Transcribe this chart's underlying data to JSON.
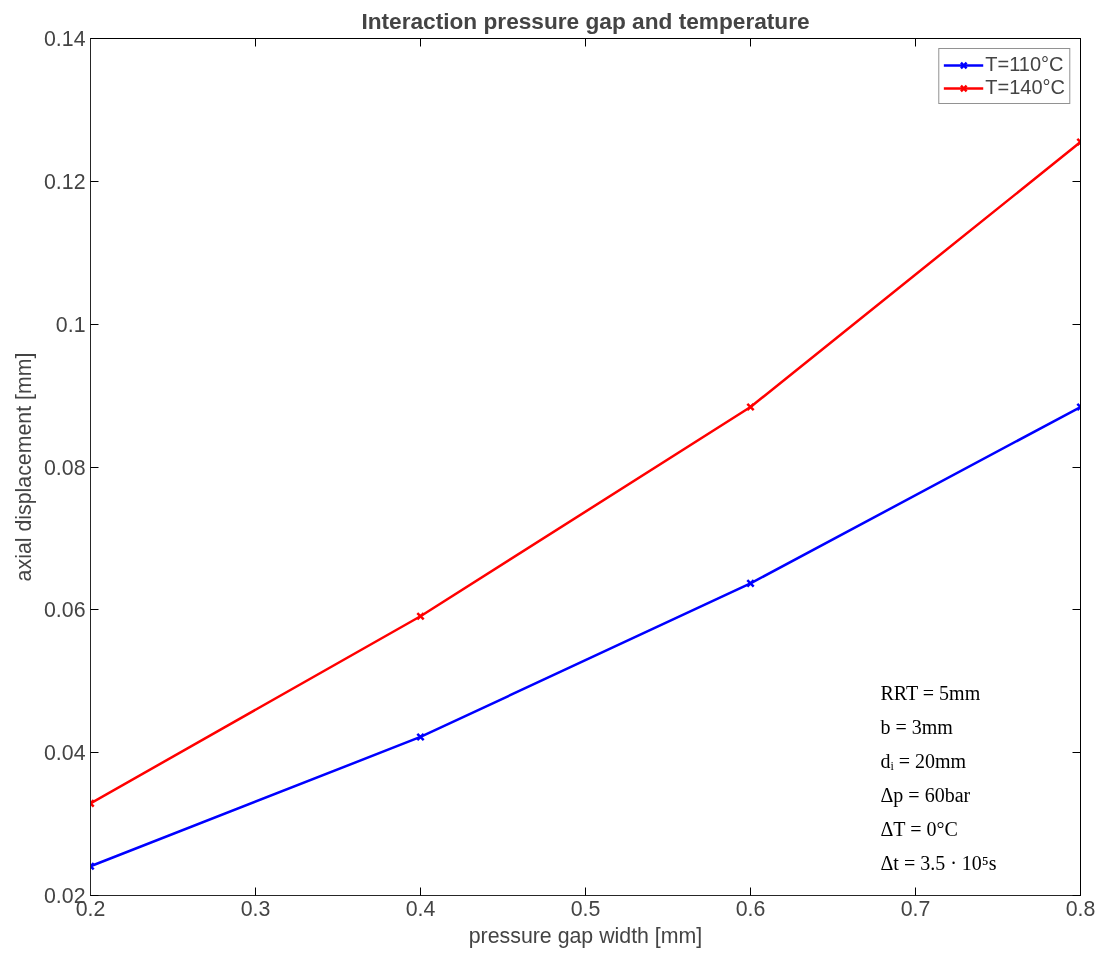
{
  "chart_data": {
    "type": "line",
    "title": "Interaction pressure gap and temperature",
    "xlabel": "pressure gap width [mm]",
    "ylabel": "axial displacement [mm]",
    "x": [
      0.2,
      0.4,
      0.6,
      0.8
    ],
    "series": [
      {
        "name": "T=110°C",
        "color": "#0000ff",
        "values": [
          0.0241,
          0.0422,
          0.0637,
          0.0884
        ]
      },
      {
        "name": "T=140°C",
        "color": "#ff0000",
        "values": [
          0.0329,
          0.0591,
          0.0884,
          0.1255
        ]
      }
    ],
    "xlim": [
      0.2,
      0.8
    ],
    "ylim": [
      0.02,
      0.14
    ],
    "xticks": [
      0.2,
      0.3,
      0.4,
      0.5,
      0.6,
      0.7,
      0.8
    ],
    "yticks": [
      0.02,
      0.04,
      0.06,
      0.08,
      {
        "value": 0.1,
        "label": "0.1"
      },
      0.12,
      0.14
    ],
    "annotations": [
      "RRT = 5mm",
      "b = 3mm",
      "dᵢ = 20mm",
      "Δp = 60bar",
      "ΔT = 0°C",
      "Δt = 3.5 · 10⁵s"
    ],
    "marker": "cross",
    "line_style": "solid",
    "legend": "top right",
    "grid": false
  }
}
